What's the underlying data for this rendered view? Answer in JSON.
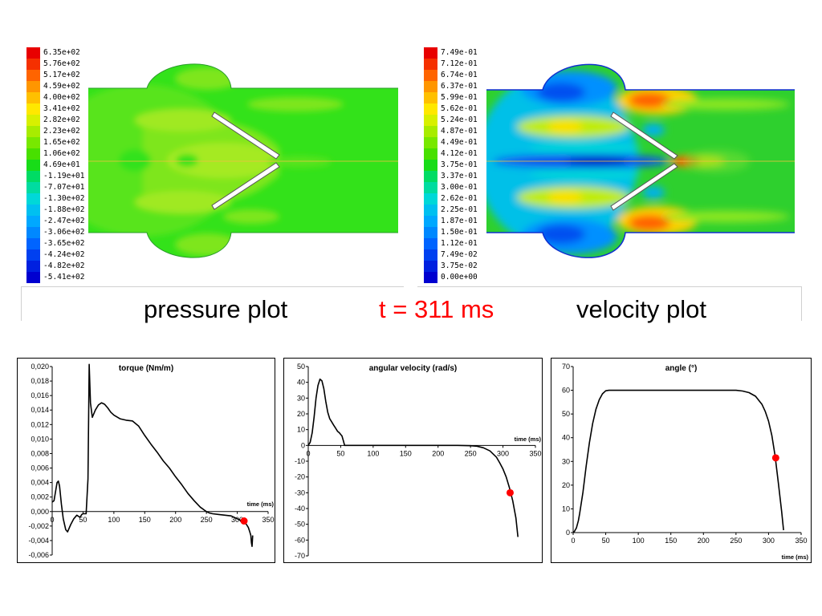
{
  "pressure_legend": {
    "labels": [
      "6.35e+02",
      "5.76e+02",
      "5.17e+02",
      "4.59e+02",
      "4.00e+02",
      "3.41e+02",
      "2.82e+02",
      "2.23e+02",
      "1.65e+02",
      "1.06e+02",
      "4.69e+01",
      "-1.19e+01",
      "-7.07e+01",
      "-1.30e+02",
      "-1.88e+02",
      "-2.47e+02",
      "-3.06e+02",
      "-3.65e+02",
      "-4.24e+02",
      "-4.82e+02",
      "-5.41e+02"
    ]
  },
  "velocity_legend": {
    "labels": [
      "7.49e-01",
      "7.12e-01",
      "6.74e-01",
      "6.37e-01",
      "5.99e-01",
      "5.62e-01",
      "5.24e-01",
      "4.87e-01",
      "4.49e-01",
      "4.12e-01",
      "3.75e-01",
      "3.37e-01",
      "3.00e-01",
      "2.62e-01",
      "2.25e-01",
      "1.87e-01",
      "1.50e-01",
      "1.12e-01",
      "7.49e-02",
      "3.75e-02",
      "0.00e+00"
    ]
  },
  "legend_colors": [
    "#e80000",
    "#f53000",
    "#ff6400",
    "#ff9600",
    "#ffc000",
    "#ffe800",
    "#d8f000",
    "#a8ec00",
    "#78e800",
    "#48e000",
    "#18dc18",
    "#00dc64",
    "#00dca0",
    "#00d8d8",
    "#00c0f0",
    "#00a8ff",
    "#0088ff",
    "#0064ff",
    "#0040f0",
    "#0020e0",
    "#0000d0"
  ],
  "captions": {
    "pressure": "pressure plot",
    "time": "t = 311 ms",
    "velocity": "velocity plot"
  },
  "chart_data": [
    {
      "type": "line",
      "title": "torque (Nm/m)",
      "xlabel": "time (ms)",
      "ylabel": "",
      "xlim": [
        0,
        350
      ],
      "ylim": [
        -0.006,
        0.02
      ],
      "xticks": [
        "0",
        "50",
        "100",
        "150",
        "200",
        "250",
        "300",
        "350"
      ],
      "yticks": [
        "0,020",
        "0,018",
        "0,016",
        "0,014",
        "0,012",
        "0,010",
        "0,008",
        "0,006",
        "0,004",
        "0,002",
        "0,000",
        "-0,002",
        "-0,004",
        "-0,006"
      ],
      "series": [
        {
          "x": [
            0,
            3,
            5,
            8,
            10,
            12,
            15,
            18,
            22,
            25,
            30,
            35,
            40,
            45,
            48,
            50,
            55,
            58,
            60,
            62,
            65,
            70,
            75,
            80,
            85,
            90,
            95,
            100,
            110,
            120,
            130,
            140,
            150,
            160,
            170,
            180,
            190,
            200,
            210,
            220,
            230,
            240,
            250,
            255,
            260,
            270,
            280,
            290,
            295,
            300,
            305,
            308,
            310,
            312,
            315,
            318,
            320,
            322,
            323,
            324,
            325
          ],
          "y": [
            0.0013,
            0.0015,
            0.0025,
            0.004,
            0.0042,
            0.0035,
            0.001,
            -0.001,
            -0.0025,
            -0.0028,
            -0.0018,
            -0.001,
            -0.0005,
            -0.0008,
            -0.0004,
            -0.0003,
            -0.0003,
            0.0045,
            0.0203,
            0.015,
            0.013,
            0.014,
            0.0147,
            0.015,
            0.0148,
            0.0143,
            0.0137,
            0.0133,
            0.0128,
            0.0126,
            0.0125,
            0.0118,
            0.0105,
            0.0093,
            0.0082,
            0.007,
            0.006,
            0.0048,
            0.0037,
            0.0025,
            0.0015,
            0.0006,
            0.0,
            -0.0002,
            -0.0003,
            -0.0004,
            -0.0005,
            -0.0006,
            -0.0008,
            -0.001,
            -0.0012,
            -0.0013,
            -0.0013,
            -0.0015,
            -0.0018,
            -0.0022,
            -0.0027,
            -0.0033,
            -0.0043,
            -0.0048,
            -0.0033
          ]
        }
      ],
      "marker": {
        "x": 311,
        "y": -0.0013,
        "color": "#ff0000"
      }
    },
    {
      "type": "line",
      "title": "angular velocity (rad/s)",
      "xlabel": "time (ms)",
      "ylabel": "",
      "xlim": [
        0,
        350
      ],
      "ylim": [
        -70,
        50
      ],
      "xticks": [
        "0",
        "50",
        "100",
        "150",
        "200",
        "250",
        "300",
        "350"
      ],
      "yticks": [
        "50",
        "40",
        "30",
        "20",
        "10",
        "0",
        "-10",
        "-20",
        "-30",
        "-40",
        "-50",
        "-60",
        "-70"
      ],
      "series": [
        {
          "x": [
            0,
            3,
            6,
            9,
            12,
            15,
            18,
            21,
            24,
            27,
            30,
            33,
            36,
            39,
            42,
            45,
            48,
            50,
            52,
            54,
            56,
            60,
            100,
            150,
            200,
            230,
            250,
            260,
            270,
            280,
            290,
            295,
            300,
            305,
            310,
            315,
            320,
            323
          ],
          "y": [
            0,
            2,
            8,
            18,
            30,
            38,
            42,
            41,
            36,
            28,
            21,
            17,
            15,
            13,
            11,
            9,
            8,
            7,
            6,
            3,
            0,
            0,
            0,
            0,
            0,
            0,
            -0.2,
            -0.5,
            -1.5,
            -3.5,
            -7.5,
            -11,
            -15,
            -20,
            -27,
            -35,
            -46,
            -58
          ]
        }
      ],
      "marker": {
        "x": 311,
        "y": -30,
        "color": "#ff0000"
      }
    },
    {
      "type": "line",
      "title": "angle (°)",
      "xlabel": "time (ms)",
      "ylabel": "",
      "xlim": [
        0,
        350
      ],
      "ylim": [
        0,
        70
      ],
      "xticks": [
        "0",
        "50",
        "100",
        "150",
        "200",
        "250",
        "300",
        "350"
      ],
      "yticks": [
        "70",
        "60",
        "50",
        "40",
        "30",
        "20",
        "10",
        "0"
      ],
      "series": [
        {
          "x": [
            0,
            2,
            5,
            8,
            10,
            15,
            20,
            25,
            30,
            35,
            40,
            45,
            50,
            55,
            100,
            150,
            200,
            250,
            260,
            270,
            280,
            290,
            295,
            300,
            305,
            310,
            315,
            320,
            323
          ],
          "y": [
            0,
            0.5,
            2,
            5,
            8,
            17,
            28,
            38,
            46,
            52,
            56,
            58.5,
            59.8,
            60,
            60,
            60,
            60,
            60,
            59.7,
            59,
            57.5,
            54,
            51,
            47,
            41,
            32.5,
            21,
            9,
            1
          ]
        }
      ],
      "marker": {
        "x": 311,
        "y": 31.5,
        "color": "#ff0000"
      }
    }
  ]
}
